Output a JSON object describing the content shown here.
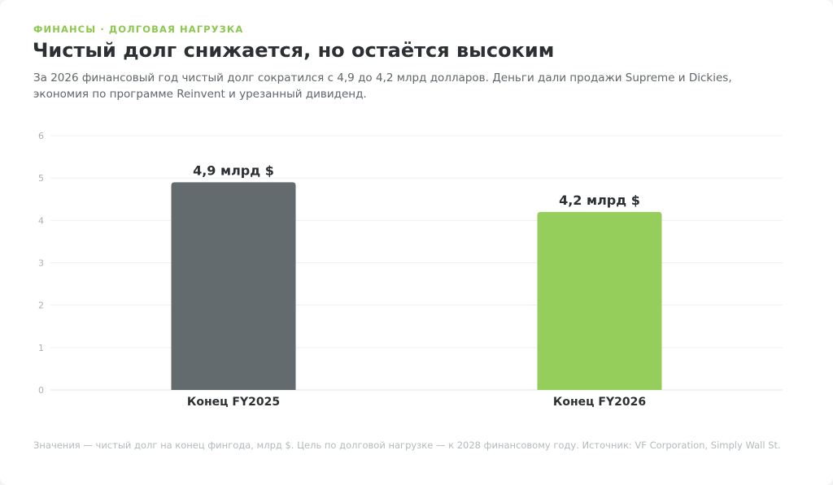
{
  "header": {
    "eyebrow": "ФИНАНСЫ · ДОЛГОВАЯ НАГРУЗКА",
    "title": "Чистый долг снижается, но остаётся высоким",
    "subtitle": "За 2026 финансовый год чистый долг сократился с 4,9 до 4,2 млрд долларов. Деньги дали продажи Supreme и Dickies, экономия по программе Reinvent и урезанный дивиденд."
  },
  "footnote": "Значения — чистый долг на конец фингода, млрд $. Цель по долговой нагрузке — к 2028 финансовому году. Источник: VF Corporation, Simply Wall St.",
  "colors": {
    "accent": "#8cc74f",
    "bar_fy2025": "#636b6f",
    "bar_fy2026": "#96ce5b",
    "grid": "#efefef",
    "text_dark": "#2b3033"
  },
  "chart_data": {
    "type": "bar",
    "categories": [
      "Конец FY2025",
      "Конец FY2026"
    ],
    "values": [
      4.9,
      4.2
    ],
    "data_labels": [
      "4,9 млрд $",
      "4,2 млрд $"
    ],
    "bar_colors": [
      "#636b6f",
      "#96ce5b"
    ],
    "ylim": [
      0,
      6
    ],
    "yticks": [
      0,
      1,
      2,
      3,
      4,
      5,
      6
    ],
    "grid": true,
    "legend": "none"
  }
}
